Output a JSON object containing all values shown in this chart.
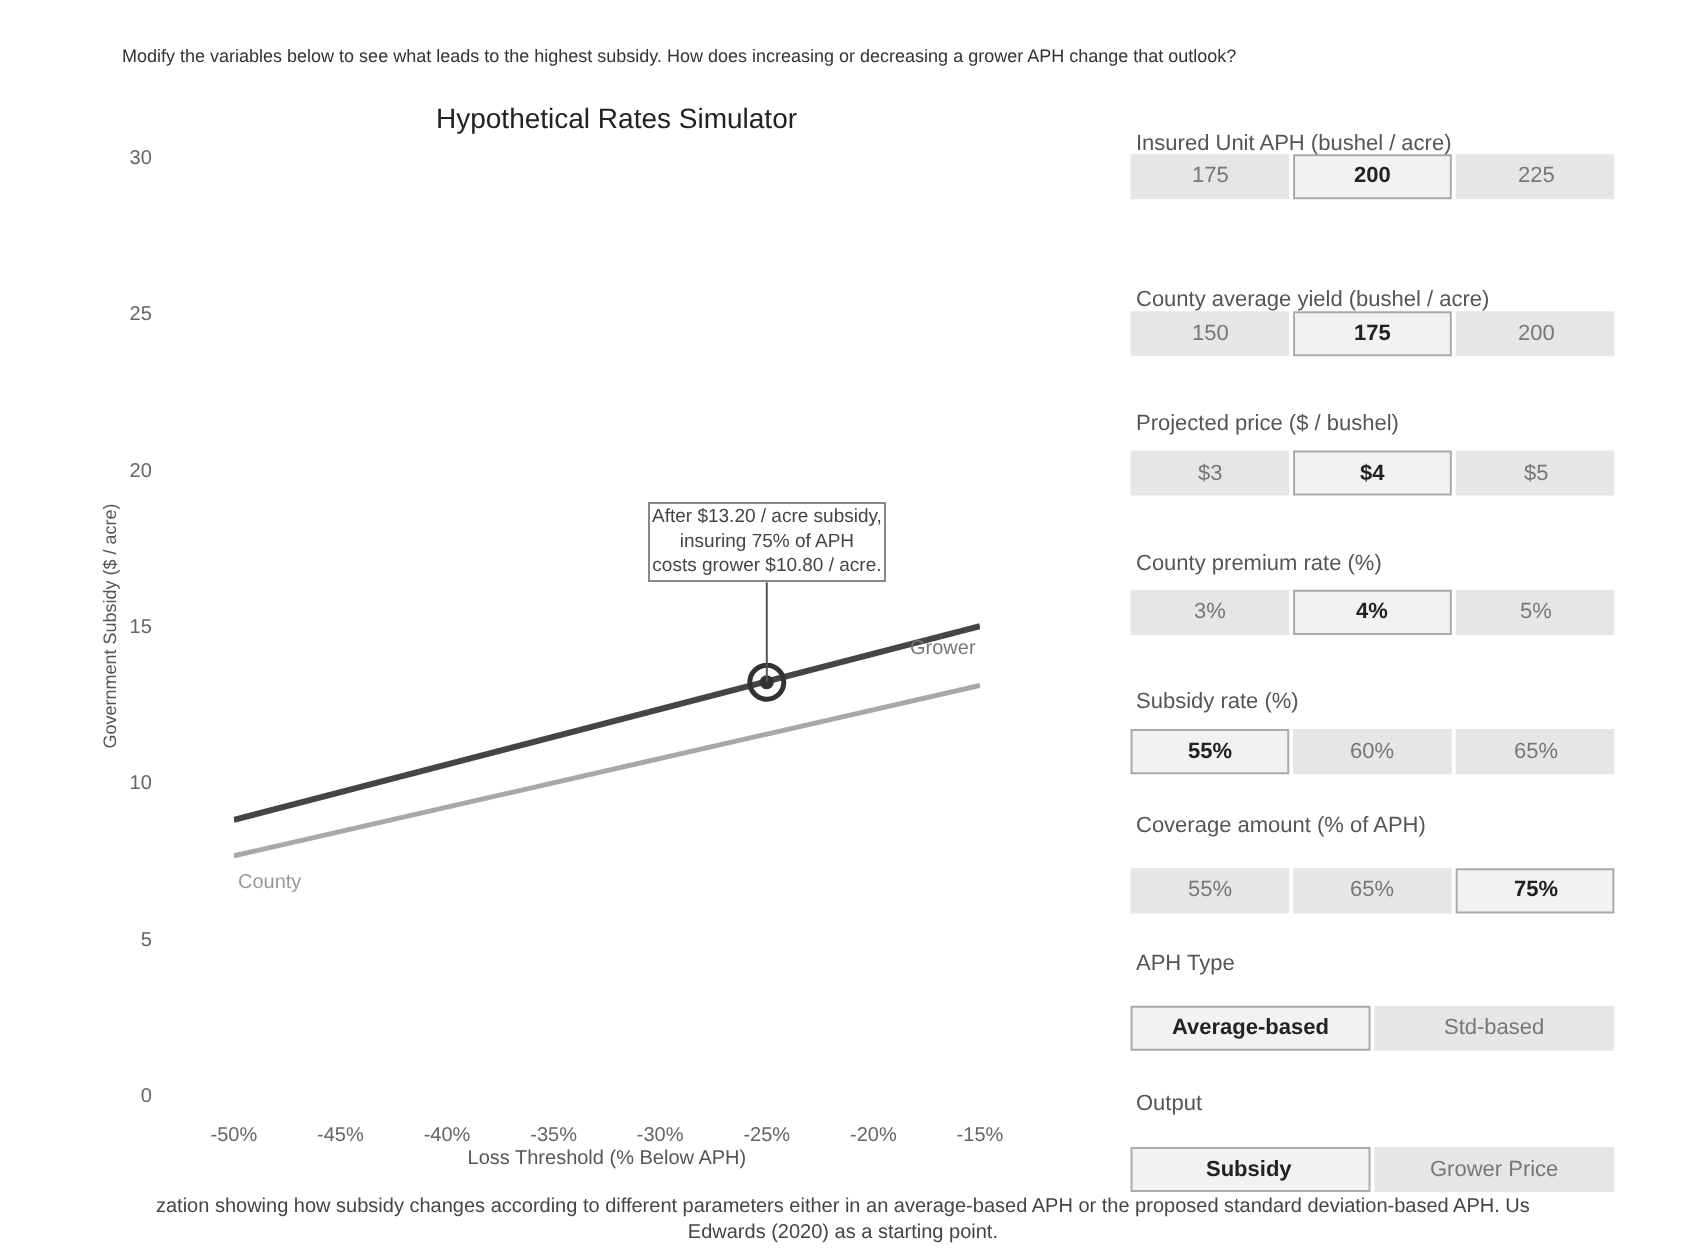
{
  "chart_data": [
    {
      "type": "line",
      "title": "Hypothetical Rates Simulator",
      "xlabel": "Loss Threshold (% Below APH)",
      "ylabel": "Government Subsidy ($ / acre)",
      "x": [
        -50,
        -15
      ],
      "series": [
        {
          "name": "Grower",
          "color": "#454545",
          "values": [
            8.8,
            15.0
          ]
        },
        {
          "name": "County",
          "color": "#a8a8a8",
          "values": [
            7.65,
            13.1
          ]
        }
      ],
      "xlim": [
        -50,
        -15
      ],
      "xticks": [
        {
          "value": -50,
          "label": "-50%"
        },
        {
          "value": -45,
          "label": "-45%"
        },
        {
          "value": -40,
          "label": "-40%"
        },
        {
          "value": -35,
          "label": "-35%"
        },
        {
          "value": -30,
          "label": "-30%"
        },
        {
          "value": -25,
          "label": "-25%"
        },
        {
          "value": -20,
          "label": "-20%"
        },
        {
          "value": -15,
          "label": "-15%"
        }
      ],
      "ylim": [
        0,
        30
      ],
      "yticks": [
        0,
        5,
        10,
        15,
        20,
        25,
        30
      ],
      "legend": false,
      "marker": "none",
      "line_style": "solid",
      "annotations": [
        {
          "text": "After $13.20 / acre subsidy,\ninsuring 75% of APH\ncosts grower $10.80 / acre.",
          "x": -25,
          "y": 13.2
        },
        "Modify the variables below to see what leads to the highest subsidy. How does increasing or decreasing a grower APH change that outlook?",
        "zation showing how subsidy changes according to different parameters either in an average-based APH or the proposed standard deviation-based APH. Us\nEdwards (2020) as a starting point."
      ]
    },
    {
      "type": "other",
      "categories": [
        "Insured Unit APH (bushel / acre)",
        "County average yield (bushel / acre)",
        "Projected price ($ / bushel)",
        "County premium rate (%)",
        "Subsidy rate (%)",
        "Coverage amount (% of APH)",
        "APH Type",
        "Output"
      ],
      "cell_labels": [
        [
          "175",
          "200",
          "225"
        ],
        [
          "150",
          "175",
          "200"
        ],
        [
          "$3",
          "$4",
          "$5"
        ],
        [
          "3%",
          "4%",
          "5%"
        ],
        [
          "55%",
          "60%",
          "65%"
        ],
        [
          "55%",
          "65%",
          "75%"
        ],
        [
          "Average-based",
          "Std-based"
        ],
        [
          "Subsidy",
          "Grower Price"
        ]
      ],
      "colors": [
        [
          "#e6e6e6",
          "#f2f2f2",
          "#e6e6e6"
        ],
        [
          "#e6e6e6",
          "#f2f2f2",
          "#e6e6e6"
        ],
        [
          "#e6e6e6",
          "#f2f2f2",
          "#e6e6e6"
        ],
        [
          "#e6e6e6",
          "#f2f2f2",
          "#e6e6e6"
        ],
        [
          "#f2f2f2",
          "#e6e6e6",
          "#e6e6e6"
        ],
        [
          "#e6e6e6",
          "#e6e6e6",
          "#f2f2f2"
        ],
        [
          "#f2f2f2",
          "#e6e6e6"
        ],
        [
          "#f2f2f2",
          "#e6e6e6"
        ]
      ]
    }
  ]
}
